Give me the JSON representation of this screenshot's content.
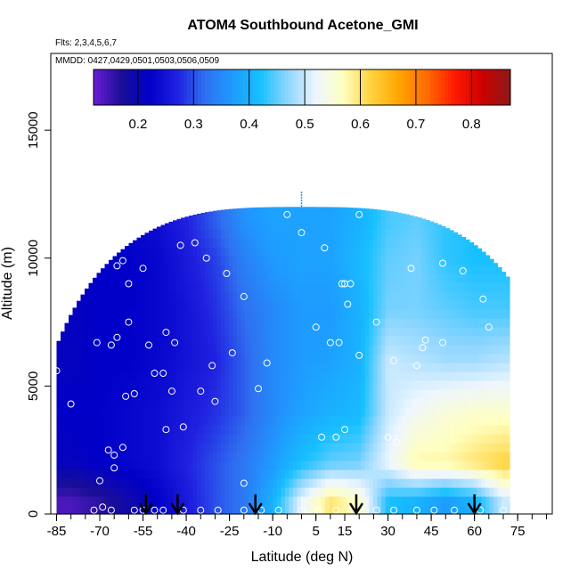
{
  "chart_data": {
    "type": "heatmap",
    "title": "ATOM4 Southbound Acetone_GMI",
    "subtitle_flights": "Flts: 2,3,4,5,6,7",
    "subtitle_dates": "MMDD: 0427,0429,0501,0503,0506,0509",
    "xlabel": "Latitude (deg N)",
    "ylabel": "Altitude (m)",
    "xlim": [
      -87,
      87
    ],
    "ylim": [
      0,
      18000
    ],
    "x_ticks": [
      -85,
      -70,
      -55,
      -40,
      -25,
      -10,
      5,
      15,
      30,
      45,
      60,
      75
    ],
    "y_ticks": [
      0,
      5000,
      10000,
      15000
    ],
    "colorbar": {
      "min": 0.12,
      "max": 0.87,
      "ticks": [
        0.2,
        0.3,
        0.4,
        0.5,
        0.6,
        0.7,
        0.8
      ],
      "colors": [
        "#6a1ed6",
        "#1a0f96",
        "#0000c8",
        "#2020e0",
        "#2f6ff0",
        "#1e9bff",
        "#17c0ff",
        "#8fd6ff",
        "#eef6ff",
        "#ffffc0",
        "#ffd23c",
        "#ffa500",
        "#ff6a00",
        "#ff1a00",
        "#cc0000",
        "#8b1a1a"
      ]
    },
    "curtain": {
      "lat_extent": [
        -85,
        71
      ],
      "alt_max": 12000,
      "latitudes": [
        -80,
        -70,
        -60,
        -50,
        -40,
        -30,
        -20,
        -10,
        0,
        10,
        20,
        30,
        40,
        50,
        60,
        70
      ],
      "altitudes": [
        500,
        2000,
        4000,
        6000,
        8000,
        10000,
        11500
      ],
      "values": [
        [
          0.14,
          0.16,
          0.19,
          0.22,
          0.26,
          0.3,
          0.33,
          0.4,
          0.52,
          0.6,
          0.56,
          0.42,
          0.4,
          0.37,
          0.4,
          0.5
        ],
        [
          0.21,
          0.22,
          0.23,
          0.24,
          0.27,
          0.3,
          0.33,
          0.37,
          0.42,
          0.45,
          0.46,
          0.52,
          0.58,
          0.58,
          0.6,
          0.62
        ],
        [
          0.22,
          0.22,
          0.23,
          0.24,
          0.26,
          0.28,
          0.31,
          0.35,
          0.38,
          0.4,
          0.41,
          0.5,
          0.53,
          0.55,
          0.56,
          0.56
        ],
        [
          0.21,
          0.22,
          0.22,
          0.23,
          0.25,
          0.27,
          0.31,
          0.35,
          0.37,
          0.38,
          0.4,
          0.5,
          0.49,
          0.48,
          0.48,
          0.49
        ],
        [
          0.21,
          0.22,
          0.22,
          0.23,
          0.25,
          0.28,
          0.32,
          0.35,
          0.37,
          0.37,
          0.4,
          0.46,
          0.46,
          0.45,
          0.44,
          0.44
        ],
        [
          0.21,
          0.22,
          0.22,
          0.23,
          0.26,
          0.29,
          0.34,
          0.37,
          0.38,
          0.38,
          0.41,
          0.45,
          0.46,
          0.43,
          0.42,
          0.42
        ],
        [
          0.22,
          0.23,
          0.23,
          0.24,
          0.27,
          0.31,
          0.36,
          0.38,
          0.38,
          0.38,
          0.4,
          0.44,
          0.45,
          0.43,
          0.42,
          0.42
        ]
      ]
    },
    "observations": [
      [
        -85,
        5600
      ],
      [
        -80,
        4300
      ],
      [
        -78,
        9300
      ],
      [
        -80,
        9500
      ],
      [
        -70,
        1300
      ],
      [
        -68,
        10100
      ],
      [
        -68,
        10400
      ],
      [
        -67,
        10800
      ],
      [
        -66,
        11300
      ],
      [
        -71,
        6700
      ],
      [
        -66,
        6600
      ],
      [
        -67,
        2500
      ],
      [
        -65,
        2300
      ],
      [
        -65,
        1800
      ],
      [
        -62,
        2600
      ],
      [
        -64,
        9700
      ],
      [
        -62,
        9900
      ],
      [
        -60,
        9000
      ],
      [
        -60,
        7500
      ],
      [
        -61,
        4600
      ],
      [
        -58,
        4700
      ],
      [
        -64,
        6900
      ],
      [
        -52,
        11700
      ],
      [
        -55,
        9600
      ],
      [
        -53,
        6600
      ],
      [
        -51,
        5500
      ],
      [
        -48,
        5500
      ],
      [
        -47,
        3300
      ],
      [
        -42,
        10500
      ],
      [
        -41,
        3400
      ],
      [
        -44,
        6700
      ],
      [
        -47,
        7100
      ],
      [
        -45,
        4800
      ],
      [
        -37,
        10600
      ],
      [
        -33,
        10000
      ],
      [
        -31,
        5800
      ],
      [
        -35,
        4800
      ],
      [
        -30,
        4400
      ],
      [
        -26,
        9400
      ],
      [
        -24,
        6300
      ],
      [
        -20,
        8500
      ],
      [
        -20,
        1200
      ],
      [
        -15,
        4900
      ],
      [
        -12,
        5900
      ],
      [
        -5,
        11700
      ],
      [
        0,
        11000
      ],
      [
        5,
        7300
      ],
      [
        8,
        10400
      ],
      [
        10,
        6700
      ],
      [
        13,
        6700
      ],
      [
        14,
        9000
      ],
      [
        15,
        9000
      ],
      [
        17,
        9000
      ],
      [
        16,
        8200
      ],
      [
        15,
        3300
      ],
      [
        12,
        3000
      ],
      [
        7,
        3000
      ],
      [
        20,
        11700
      ],
      [
        20,
        6200
      ],
      [
        26,
        7500
      ],
      [
        32,
        6000
      ],
      [
        30,
        3000
      ],
      [
        33,
        2800
      ],
      [
        38,
        9600
      ],
      [
        40,
        5800
      ],
      [
        43,
        6800
      ],
      [
        42,
        6500
      ],
      [
        49,
        6700
      ],
      [
        49,
        9800
      ],
      [
        56,
        9500
      ],
      [
        63,
        8400
      ],
      [
        65,
        7300
      ],
      [
        -72,
        150
      ],
      [
        -69,
        270
      ],
      [
        -66,
        150
      ],
      [
        -58,
        150
      ],
      [
        -55,
        150
      ],
      [
        -51,
        150
      ],
      [
        -48,
        150
      ],
      [
        -41,
        150
      ],
      [
        -35,
        150
      ],
      [
        -29,
        150
      ],
      [
        -20,
        150
      ],
      [
        -14,
        150
      ],
      [
        -8,
        150
      ],
      [
        0,
        150
      ],
      [
        6,
        150
      ],
      [
        12,
        150
      ],
      [
        18,
        150
      ],
      [
        26,
        150
      ],
      [
        32,
        150
      ],
      [
        40,
        150
      ],
      [
        46,
        150
      ],
      [
        53,
        150
      ],
      [
        62,
        150
      ],
      [
        70,
        150
      ]
    ],
    "arrows_lat": [
      -54,
      -43,
      -16,
      19,
      60
    ],
    "spike": {
      "lat": 0,
      "alt_from": 11800,
      "alt_to": 12600
    }
  }
}
